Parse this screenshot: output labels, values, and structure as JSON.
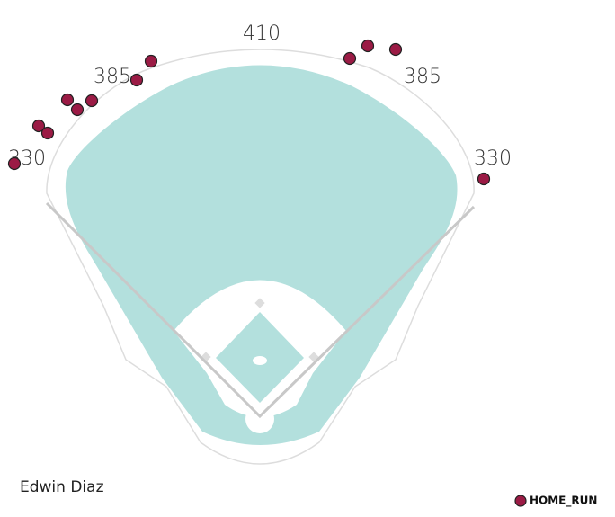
{
  "chart_data": {
    "type": "scatter",
    "title": "Edwin Diaz",
    "annotations": [
      "330",
      "385",
      "410",
      "385",
      "330"
    ],
    "xlim": [
      -289,
      395
    ],
    "ylim": [
      -112,
      463
    ],
    "series": [
      {
        "name": "HOME_RUN",
        "color": "#9b1b45",
        "x": [
          -121,
          -137,
          -214,
          -203,
          -187,
          -246,
          -236,
          -273,
          100,
          120,
          151,
          249
        ],
        "y": [
          395,
          374,
          352,
          341,
          351,
          323,
          315,
          281,
          398,
          412,
          408,
          264
        ]
      }
    ]
  }
}
